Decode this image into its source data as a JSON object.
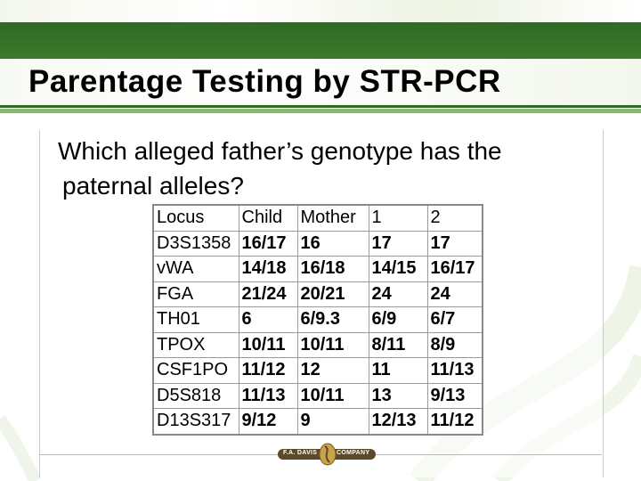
{
  "slide": {
    "title": "Parentage Testing by STR-PCR",
    "question_line1": "Which alleged father’s genotype has the",
    "question_line2": "paternal alleles?"
  },
  "table": {
    "headers": [
      "Locus",
      "Child",
      "Mother",
      "1",
      "2"
    ],
    "rows": [
      [
        "D3S1358",
        "16/17",
        "16",
        "17",
        "17"
      ],
      [
        "vWA",
        "14/18",
        "16/18",
        "14/15",
        "16/17"
      ],
      [
        "FGA",
        "21/24",
        "20/21",
        "24",
        "24"
      ],
      [
        "TH01",
        "6",
        "6/9.3",
        "6/9",
        "6/7"
      ],
      [
        "TPOX",
        "10/11",
        "10/11",
        "8/11",
        "8/9"
      ],
      [
        "CSF1PO",
        "11/12",
        "12",
        "11",
        "11/13"
      ],
      [
        "D5S818",
        "11/13",
        "10/11",
        "13",
        "9/13"
      ],
      [
        "D13S317",
        "9/12",
        "9",
        "12/13",
        "11/12"
      ]
    ]
  },
  "footer": {
    "logo_left": "F.A. DAVIS",
    "logo_right": "COMPANY"
  },
  "colors": {
    "title_bar": "#3c7a2c",
    "accent_light": "#8fb47a"
  }
}
